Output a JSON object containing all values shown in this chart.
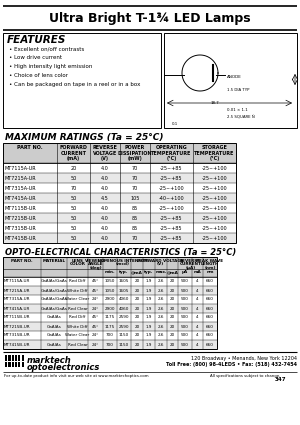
{
  "title": "Ultra Bright T-1¾ LED Lamps",
  "bg_color": "#ffffff",
  "features_title": "FEATURES",
  "features": [
    "Excellent on/off contrasts",
    "Low drive current",
    "High intensity light emission",
    "Choice of lens color",
    "Can be packaged on tape in a reel or in a box"
  ],
  "max_ratings_title": "MAXIMUM RATINGS (Ta = 25°C)",
  "max_ratings_headers": [
    "PART NO.",
    "FORWARD\nCURRENT\n(mA)",
    "REVERSE\nVOLTAGE\n(V)",
    "POWER\nDISSIPATION\n(mW)",
    "OPERATING\nTEMPERATURE\n(°C)",
    "STORAGE\nTEMPERATURE\n(°C)"
  ],
  "max_ratings_rows": [
    [
      "MT7115A-UR",
      "20",
      "4.0",
      "70",
      "-25~+85",
      "-25~+100"
    ],
    [
      "MT7215A-UR",
      "50",
      "4.0",
      "70",
      "-25~+85",
      "-25~+100"
    ],
    [
      "MT7315A-UR",
      "70",
      "4.0",
      "70",
      "-25~+100",
      "-25~+100"
    ],
    [
      "MT7415A-UR",
      "50",
      "4.5",
      "105",
      "-40~+100",
      "-25~+100"
    ],
    [
      "MT7115B-UR",
      "50",
      "4.0",
      "85",
      "-25~+100",
      "-25~+100"
    ],
    [
      "MT7215B-UR",
      "50",
      "4.0",
      "85",
      "-25~+85",
      "-25~+100"
    ],
    [
      "MT7315B-UR",
      "50",
      "4.0",
      "85",
      "-25~+85",
      "-25~+100"
    ],
    [
      "MT7415B-UR",
      "50",
      "4.0",
      "70",
      "-25~+85",
      "-25~+100"
    ]
  ],
  "opto_title": "OPTO-ELECTRICAL CHARACTERISTICS (Ta = 25°C)",
  "opto_rows": [
    [
      "MT7115A-UR",
      "GaAlAs/GaAs",
      "Red Diff",
      "45°",
      "1050",
      "1605",
      "20",
      "1.9",
      "2.6",
      "20",
      "500",
      "4",
      "660"
    ],
    [
      "MT7215A-UR",
      "GaAlAs/GaAs",
      "White Diff",
      "45°",
      "1050",
      "1605",
      "20",
      "1.9",
      "2.6",
      "20",
      "500",
      "4",
      "660"
    ],
    [
      "MT7315A-UR",
      "GaAlAs/GaAs",
      "Water Clear",
      "24°",
      "2900",
      "4060",
      "20",
      "1.9",
      "2.6",
      "20",
      "500",
      "4",
      "660"
    ],
    [
      "MT7415A-UR",
      "GaAlAs/GaAs",
      "Red Clear",
      "24°",
      "2900",
      "4060",
      "20",
      "1.9",
      "2.6",
      "20",
      "500",
      "4",
      "660"
    ],
    [
      "MT7115B-UR",
      "GaAlAs",
      "Red Diff",
      "45°",
      "1175",
      "2590",
      "20",
      "1.9",
      "2.6",
      "20",
      "500",
      "4",
      "660"
    ],
    [
      "MT7215B-UR",
      "GaAlAs",
      "White Diff",
      "45°",
      "1175",
      "2590",
      "20",
      "1.9",
      "2.6",
      "20",
      "500",
      "4",
      "660"
    ],
    [
      "MT7315B-UR",
      "GaAlAs",
      "Water Clear",
      "24°",
      "700",
      "1150",
      "20",
      "1.9",
      "2.6",
      "20",
      "500",
      "4",
      "660"
    ],
    [
      "MT7415B-UR",
      "GaAlAs",
      "Red Clear",
      "24°",
      "700",
      "1150",
      "20",
      "1.9",
      "2.6",
      "20",
      "500",
      "4",
      "660"
    ]
  ],
  "footer_logo_text1": "marktech",
  "footer_logo_text2": "optoelectronics",
  "footer_address": "120 Broadway • Menands, New York 12204",
  "footer_phone": "Toll Free: (800) 98-4LEDS • Fax: (518) 432-7454",
  "footer_web": "For up-to-date product info visit our web site at www.marktechoptics.com",
  "footer_rights": "All specifications subject to change.",
  "footer_page": "347"
}
